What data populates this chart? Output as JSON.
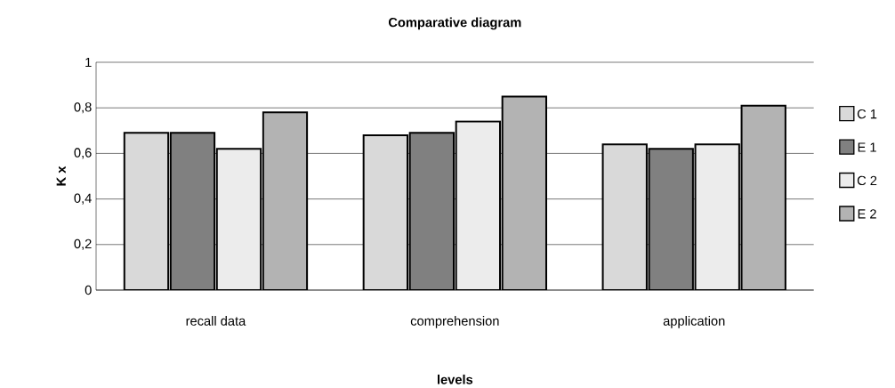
{
  "chart_data": {
    "type": "bar",
    "title": "Comparative diagram",
    "xlabel": "levels",
    "ylabel": "K  x",
    "categories": [
      "recall data",
      "comprehension",
      "application"
    ],
    "series": [
      {
        "name": "C 1",
        "color": "#d9d9d9",
        "values": [
          0.69,
          0.68,
          0.64
        ]
      },
      {
        "name": "E 1",
        "color": "#808080",
        "values": [
          0.69,
          0.69,
          0.62
        ]
      },
      {
        "name": "C 2",
        "color": "#ececec",
        "values": [
          0.62,
          0.74,
          0.64
        ]
      },
      {
        "name": "E 2",
        "color": "#b3b3b3",
        "values": [
          0.78,
          0.85,
          0.81
        ]
      }
    ],
    "ylim": [
      0,
      1
    ],
    "yticks": [
      0,
      {
        "value": 0.2,
        "label": "0,2"
      },
      {
        "value": 0.4,
        "label": "0,4"
      },
      {
        "value": 0.6,
        "label": "0,6"
      },
      {
        "value": 0.8,
        "label": "0,8"
      },
      1
    ],
    "grid": "y",
    "legend": "right"
  }
}
